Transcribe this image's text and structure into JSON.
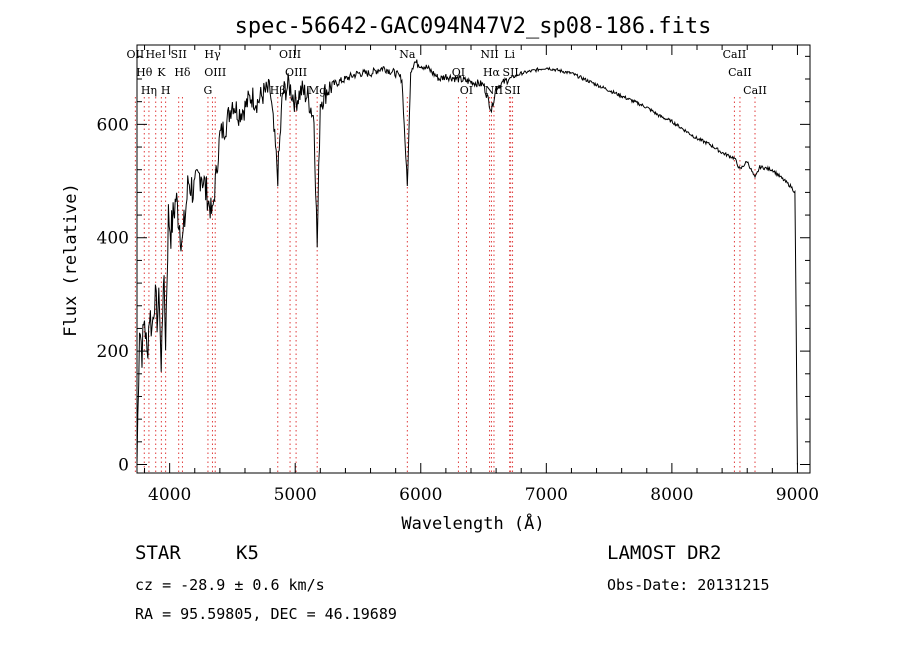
{
  "chart_data": {
    "type": "line",
    "title": "spec-56642-GAC094N47V2_sp08-186.fits",
    "xlabel": "Wavelength (Å)",
    "ylabel": "Flux (relative)",
    "xlim": [
      3740,
      9100
    ],
    "ylim": [
      -15,
      740
    ],
    "xticks": [
      4000,
      5000,
      6000,
      7000,
      8000,
      9000
    ],
    "xtick_labels": [
      "4000",
      "5000",
      "6000",
      "7000",
      "8000",
      "9000"
    ],
    "yticks": [
      0,
      200,
      400,
      600
    ],
    "ytick_labels": [
      "0",
      "200",
      "400",
      "600"
    ],
    "grid": false,
    "line_color": "#000000",
    "marker_color": "#e03c3c",
    "series": [
      {
        "x": [
          3740,
          3760,
          3780,
          3800,
          3820,
          3840,
          3860,
          3880,
          3900,
          3920,
          3933,
          3950,
          3968,
          3990,
          4010,
          4050,
          4102,
          4150,
          4200,
          4250,
          4300,
          4340,
          4400,
          4450,
          4500,
          4550,
          4600,
          4650,
          4700,
          4750,
          4800,
          4861,
          4900,
          4950,
          5000,
          5050,
          5100,
          5150,
          5175,
          5200,
          5250,
          5300,
          5400,
          5500,
          5600,
          5700,
          5800,
          5850,
          5893,
          5920,
          5950,
          6000,
          6050,
          6100,
          6150,
          6200,
          6300,
          6400,
          6500,
          6563,
          6600,
          6700,
          6800,
          6900,
          7000,
          7100,
          7200,
          7300,
          7400,
          7500,
          7600,
          7700,
          7800,
          7900,
          8000,
          8100,
          8200,
          8300,
          8400,
          8500,
          8542,
          8600,
          8662,
          8700,
          8800,
          8900,
          8950,
          8980,
          9000
        ],
        "y": [
          0,
          250,
          200,
          260,
          190,
          270,
          240,
          300,
          260,
          290,
          160,
          340,
          220,
          440,
          410,
          470,
          390,
          500,
          480,
          520,
          470,
          440,
          580,
          600,
          640,
          620,
          630,
          650,
          640,
          655,
          660,
          510,
          655,
          670,
          640,
          660,
          650,
          610,
          385,
          640,
          660,
          670,
          680,
          690,
          690,
          700,
          690,
          680,
          490,
          695,
          710,
          705,
          700,
          690,
          680,
          685,
          680,
          675,
          670,
          625,
          665,
          680,
          690,
          695,
          700,
          695,
          690,
          680,
          670,
          660,
          650,
          640,
          630,
          615,
          605,
          590,
          575,
          565,
          550,
          540,
          520,
          535,
          505,
          525,
          520,
          500,
          490,
          480,
          0
        ]
      }
    ],
    "lines": [
      {
        "label": "OII",
        "x": 3727
      },
      {
        "label": "Hθ",
        "x": 3798
      },
      {
        "label": "Hη",
        "x": 3835
      },
      {
        "label": "HeI",
        "x": 3889
      },
      {
        "label": "K",
        "x": 3934
      },
      {
        "label": "H",
        "x": 3968
      },
      {
        "label": "SII",
        "x": 4072
      },
      {
        "label": "Hδ",
        "x": 4102
      },
      {
        "label": "G",
        "x": 4305
      },
      {
        "label": "Hγ",
        "x": 4341
      },
      {
        "label": "OIII",
        "x": 4363
      },
      {
        "label": "Hβ",
        "x": 4861
      },
      {
        "label": "OIII",
        "x": 4959
      },
      {
        "label": "OIII",
        "x": 5007
      },
      {
        "label": "Mg",
        "x": 5175
      },
      {
        "label": "Na",
        "x": 5893
      },
      {
        "label": "OI",
        "x": 6300
      },
      {
        "label": "OI",
        "x": 6364
      },
      {
        "label": "NII",
        "x": 6548
      },
      {
        "label": "Hα",
        "x": 6563
      },
      {
        "label": "NII",
        "x": 6583
      },
      {
        "label": "Li",
        "x": 6708
      },
      {
        "label": "SII",
        "x": 6716
      },
      {
        "label": "SII",
        "x": 6731
      },
      {
        "label": "CaII",
        "x": 8498
      },
      {
        "label": "CaII",
        "x": 8542
      },
      {
        "label": "CaII",
        "x": 8662
      }
    ]
  },
  "info": {
    "object": "STAR",
    "subclass": "K5",
    "survey": "LAMOST DR2",
    "cz": "cz = -28.9 ± 0.6 km/s",
    "obs_date": "Obs-Date: 20131215",
    "coords": "RA =  95.59805, DEC =  46.19689"
  }
}
